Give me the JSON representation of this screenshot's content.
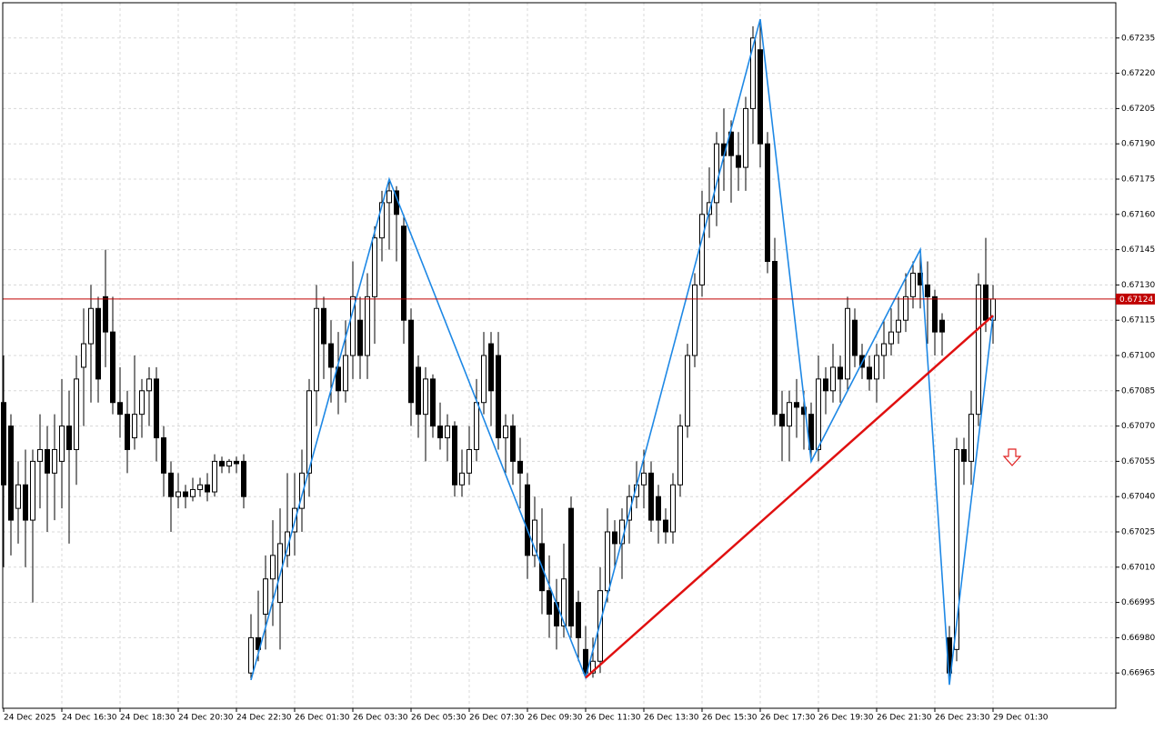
{
  "chart_data": {
    "type": "candlestick",
    "categories": [
      "24 Dec 2025",
      null,
      null,
      null,
      null,
      null,
      null,
      null,
      "24 Dec 16:30",
      null,
      null,
      null,
      null,
      null,
      null,
      null,
      "24 Dec 18:30",
      null,
      null,
      null,
      null,
      null,
      null,
      null,
      "24 Dec 20:30",
      null,
      null,
      null,
      null,
      null,
      null,
      null,
      "24 Dec 22:30",
      null,
      null,
      null,
      null,
      null,
      null,
      null,
      "26 Dec 01:30",
      null,
      null,
      null,
      null,
      null,
      null,
      null,
      "26 Dec 03:30",
      null,
      null,
      null,
      null,
      null,
      null,
      null,
      "26 Dec 05:30",
      null,
      null,
      null,
      null,
      null,
      null,
      null,
      "26 Dec 07:30",
      null,
      null,
      null,
      null,
      null,
      null,
      null,
      "26 Dec 09:30",
      null,
      null,
      null,
      null,
      null,
      null,
      null,
      "26 Dec 11:30",
      null,
      null,
      null,
      null,
      null,
      null,
      null,
      "26 Dec 13:30",
      null,
      null,
      null,
      null,
      null,
      null,
      null,
      "26 Dec 15:30",
      null,
      null,
      null,
      null,
      null,
      null,
      null,
      "26 Dec 17:30",
      null,
      null,
      null,
      null,
      null,
      null,
      null,
      "26 Dec 19:30",
      null,
      null,
      null,
      null,
      null,
      null,
      null,
      "26 Dec 21:30",
      null,
      null,
      null,
      null,
      null,
      null,
      null,
      "26 Dec 23:30",
      null,
      null,
      null,
      null,
      null,
      null,
      null,
      "29 Dec 01:30"
    ],
    "open": [
      0.6708,
      0.6707,
      0.67035,
      0.67045,
      0.6703,
      0.67055,
      0.6706,
      0.6705,
      0.67055,
      0.6707,
      0.6706,
      0.67095,
      0.67105,
      0.6712,
      0.67125,
      0.6711,
      0.6708,
      0.67075,
      0.67065,
      0.67075,
      0.67085,
      0.6709,
      0.67065,
      0.6705,
      0.6704,
      0.67042,
      0.6704,
      0.67043,
      0.67045,
      0.67042,
      0.67055,
      0.67053,
      0.67055,
      0.67055,
      0.66965,
      0.6698,
      0.6699,
      0.67005,
      0.66995,
      0.67015,
      0.67025,
      0.67035,
      0.6705,
      0.67085,
      0.6712,
      0.67105,
      0.67095,
      0.67085,
      0.671,
      0.67115,
      0.671,
      0.67125,
      0.6715,
      0.67165,
      0.6717,
      0.67155,
      0.67115,
      0.67095,
      0.67075,
      0.6709,
      0.6707,
      0.67065,
      0.6707,
      0.67045,
      0.6705,
      0.6706,
      0.6708,
      0.67105,
      0.671,
      0.67065,
      0.6707,
      0.67055,
      0.67045,
      0.67015,
      0.6702,
      0.67,
      0.66995,
      0.66985,
      0.67035,
      0.66995,
      0.66975,
      0.66965,
      0.6697,
      0.67,
      0.67025,
      0.6702,
      0.6703,
      0.6704,
      0.67045,
      0.6705,
      0.6704,
      0.6703,
      0.67025,
      0.67045,
      0.6707,
      0.671,
      0.6713,
      0.6716,
      0.67165,
      0.6719,
      0.67195,
      0.67185,
      0.6718,
      0.67205,
      0.6723,
      0.6719,
      0.6714,
      0.67075,
      0.6707,
      0.6708,
      0.67078,
      0.67075,
      0.6706,
      0.6709,
      0.67085,
      0.67095,
      0.6709,
      0.67115,
      0.671,
      0.67095,
      0.6709,
      0.671,
      0.67105,
      0.6711,
      0.67115,
      0.67125,
      0.67135,
      0.6713,
      0.67125,
      0.67115,
      0.6698,
      0.66975,
      0.6706,
      0.67055,
      0.67075,
      0.6713,
      0.67115
    ],
    "high": [
      0.671,
      0.67075,
      0.67055,
      0.6706,
      0.6706,
      0.67075,
      0.6707,
      0.67075,
      0.6709,
      0.67085,
      0.671,
      0.6712,
      0.6713,
      0.67125,
      0.67145,
      0.67125,
      0.67095,
      0.67085,
      0.671,
      0.6709,
      0.67095,
      0.67095,
      0.6707,
      0.67055,
      0.6705,
      0.67045,
      0.67048,
      0.67048,
      0.6705,
      0.67058,
      0.67057,
      0.67056,
      0.67057,
      0.67058,
      0.6699,
      0.67,
      0.67015,
      0.6703,
      0.67035,
      0.6705,
      0.6705,
      0.6706,
      0.6709,
      0.6713,
      0.67125,
      0.67115,
      0.6711,
      0.67115,
      0.6714,
      0.67125,
      0.67135,
      0.67155,
      0.6717,
      0.67175,
      0.67172,
      0.6716,
      0.6712,
      0.671,
      0.67095,
      0.67092,
      0.6708,
      0.67075,
      0.67072,
      0.6706,
      0.6707,
      0.6709,
      0.6711,
      0.6711,
      0.6711,
      0.67075,
      0.67075,
      0.67065,
      0.6705,
      0.6704,
      0.67035,
      0.67015,
      0.67005,
      0.6702,
      0.6704,
      0.67,
      0.66985,
      0.6698,
      0.6701,
      0.67035,
      0.6703,
      0.67035,
      0.67045,
      0.67055,
      0.6706,
      0.67055,
      0.67045,
      0.67035,
      0.6705,
      0.67075,
      0.67105,
      0.67135,
      0.6717,
      0.6718,
      0.67195,
      0.67205,
      0.672,
      0.67195,
      0.6721,
      0.6724,
      0.67243,
      0.67195,
      0.6715,
      0.67085,
      0.67085,
      0.6709,
      0.67085,
      0.6708,
      0.671,
      0.67095,
      0.67105,
      0.671,
      0.67125,
      0.6712,
      0.67105,
      0.671,
      0.67105,
      0.67115,
      0.6712,
      0.67125,
      0.67135,
      0.6714,
      0.67145,
      0.6714,
      0.67128,
      0.67118,
      0.66985,
      0.67065,
      0.67065,
      0.67085,
      0.67135,
      0.6715,
      0.6713
    ],
    "low": [
      0.6701,
      0.67015,
      0.6702,
      0.6701,
      0.66995,
      0.67035,
      0.67025,
      0.6703,
      0.67035,
      0.6702,
      0.67045,
      0.6707,
      0.6708,
      0.6708,
      0.67095,
      0.67075,
      0.67065,
      0.6705,
      0.6706,
      0.67065,
      0.6707,
      0.67055,
      0.6704,
      0.67025,
      0.67035,
      0.67035,
      0.67038,
      0.6704,
      0.67038,
      0.6704,
      0.6705,
      0.6705,
      0.6705,
      0.67035,
      0.66962,
      0.6697,
      0.66975,
      0.66985,
      0.66975,
      0.6701,
      0.67015,
      0.67025,
      0.6704,
      0.6707,
      0.6709,
      0.6708,
      0.67075,
      0.6708,
      0.6709,
      0.6709,
      0.6709,
      0.67105,
      0.6714,
      0.67145,
      0.6714,
      0.67105,
      0.6707,
      0.67065,
      0.67055,
      0.67065,
      0.6706,
      0.67055,
      0.6704,
      0.6704,
      0.67045,
      0.67055,
      0.67075,
      0.6707,
      0.6706,
      0.6705,
      0.67045,
      0.67035,
      0.67005,
      0.6701,
      0.6699,
      0.6698,
      0.66975,
      0.6698,
      0.6698,
      0.6697,
      0.66963,
      0.66963,
      0.66965,
      0.66995,
      0.6701,
      0.67005,
      0.6702,
      0.67035,
      0.67035,
      0.67025,
      0.6702,
      0.6702,
      0.6702,
      0.6704,
      0.67065,
      0.67095,
      0.67125,
      0.6715,
      0.67155,
      0.6717,
      0.67165,
      0.6717,
      0.6717,
      0.6719,
      0.6718,
      0.67135,
      0.6707,
      0.67055,
      0.67055,
      0.67065,
      0.6706,
      0.67055,
      0.67055,
      0.67075,
      0.6708,
      0.6708,
      0.67085,
      0.67095,
      0.6709,
      0.67085,
      0.6708,
      0.6709,
      0.671,
      0.67105,
      0.6711,
      0.6712,
      0.6712,
      0.67105,
      0.671,
      0.671,
      0.6696,
      0.6697,
      0.67045,
      0.67045,
      0.6707,
      0.6711,
      0.67105
    ],
    "close": [
      0.67045,
      0.6703,
      0.67045,
      0.6703,
      0.67055,
      0.6706,
      0.6705,
      0.6706,
      0.6707,
      0.6706,
      0.6709,
      0.67105,
      0.6712,
      0.6709,
      0.6711,
      0.6708,
      0.67075,
      0.6706,
      0.67075,
      0.67085,
      0.6709,
      0.67065,
      0.6705,
      0.6704,
      0.67042,
      0.6704,
      0.67043,
      0.67045,
      0.67042,
      0.67055,
      0.67053,
      0.67055,
      0.67054,
      0.6704,
      0.6698,
      0.66975,
      0.67005,
      0.67015,
      0.6702,
      0.67025,
      0.67035,
      0.6705,
      0.67085,
      0.6712,
      0.67105,
      0.67095,
      0.67085,
      0.671,
      0.67125,
      0.671,
      0.67125,
      0.6715,
      0.67165,
      0.6717,
      0.6716,
      0.67115,
      0.6708,
      0.67075,
      0.6709,
      0.6707,
      0.67065,
      0.6707,
      0.67045,
      0.6705,
      0.6706,
      0.6708,
      0.671,
      0.67085,
      0.67065,
      0.6707,
      0.67055,
      0.6705,
      0.67015,
      0.6703,
      0.67,
      0.6699,
      0.66985,
      0.67005,
      0.66985,
      0.6698,
      0.66965,
      0.6697,
      0.67,
      0.67025,
      0.6702,
      0.6703,
      0.6704,
      0.67045,
      0.6705,
      0.6703,
      0.6703,
      0.67025,
      0.67045,
      0.6707,
      0.671,
      0.6713,
      0.6716,
      0.67165,
      0.6719,
      0.67185,
      0.67185,
      0.6718,
      0.67205,
      0.67235,
      0.6719,
      0.6714,
      0.67075,
      0.6707,
      0.6708,
      0.67078,
      0.67075,
      0.6706,
      0.6709,
      0.67085,
      0.67095,
      0.6709,
      0.6712,
      0.671,
      0.67095,
      0.6709,
      0.671,
      0.67105,
      0.6711,
      0.67115,
      0.67125,
      0.67135,
      0.6713,
      0.67125,
      0.6711,
      0.6711,
      0.66965,
      0.6706,
      0.67055,
      0.67075,
      0.6713,
      0.67115,
      0.67124
    ],
    "bull_color": "#ffffff",
    "bear_color": "#000000",
    "ylim": [
      0.6695,
      0.6725
    ],
    "yticks": [
      0.66965,
      {
        "value": 0.6698,
        "label": "0.66980"
      },
      0.66995,
      {
        "value": 0.6701,
        "label": "0.67010"
      },
      0.67025,
      {
        "value": 0.6704,
        "label": "0.67040"
      },
      0.67055,
      {
        "value": 0.6707,
        "label": "0.67070"
      },
      0.67085,
      {
        "value": 0.671,
        "label": "0.67100"
      },
      0.67115,
      {
        "value": 0.6713,
        "label": "0.67130"
      },
      0.67145,
      {
        "value": 0.6716,
        "label": "0.67160"
      },
      0.67175,
      {
        "value": 0.6719,
        "label": "0.67190"
      },
      0.67205,
      {
        "value": 0.6722,
        "label": "0.67220"
      },
      0.67235
    ],
    "grid": true,
    "zigzag": {
      "color": "#1e88e5",
      "x": [
        34,
        53,
        80,
        104,
        111,
        126,
        130,
        136
      ],
      "y": [
        0.66962,
        0.67175,
        0.66963,
        0.67243,
        0.67055,
        0.67145,
        0.6696,
        0.67117
      ]
    },
    "trendline": {
      "color": "#e01010",
      "x": [
        80,
        136
      ],
      "y": [
        0.66963,
        0.67117
      ]
    },
    "last_price": 0.67124,
    "last_price_color": "#c00000"
  }
}
